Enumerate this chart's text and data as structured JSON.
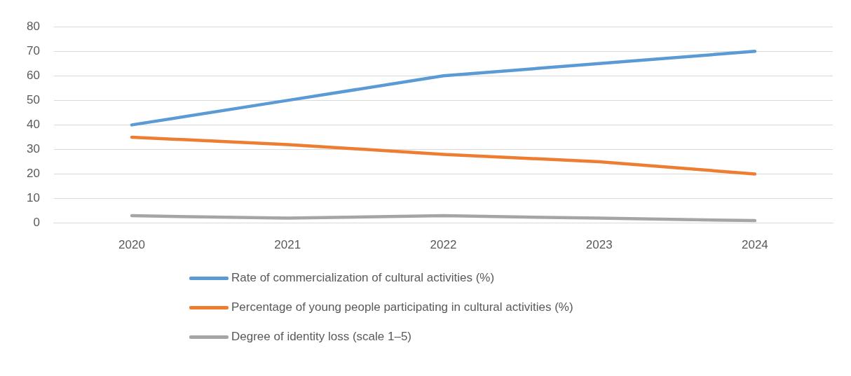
{
  "chart_data": {
    "type": "line",
    "categories": [
      "2020",
      "2021",
      "2022",
      "2023",
      "2024"
    ],
    "series": [
      {
        "name": "Rate of commercialization of cultural activities (%)",
        "color": "#5b9bd5",
        "values": [
          40,
          50,
          60,
          65,
          70
        ]
      },
      {
        "name": "Percentage of young people participating in cultural activities (%)",
        "color": "#ed7d31",
        "values": [
          35,
          32,
          28,
          25,
          20
        ]
      },
      {
        "name": "Degree of identity loss (scale 1–5)",
        "color": "#a5a5a5",
        "values": [
          3,
          2,
          3,
          2,
          1
        ]
      }
    ],
    "ylim": [
      0,
      80
    ],
    "yticks": [
      0,
      10,
      20,
      30,
      40,
      50,
      60,
      70,
      80
    ],
    "grid": "y",
    "legend": "bottom",
    "marker": "none",
    "line_style": "solid"
  }
}
